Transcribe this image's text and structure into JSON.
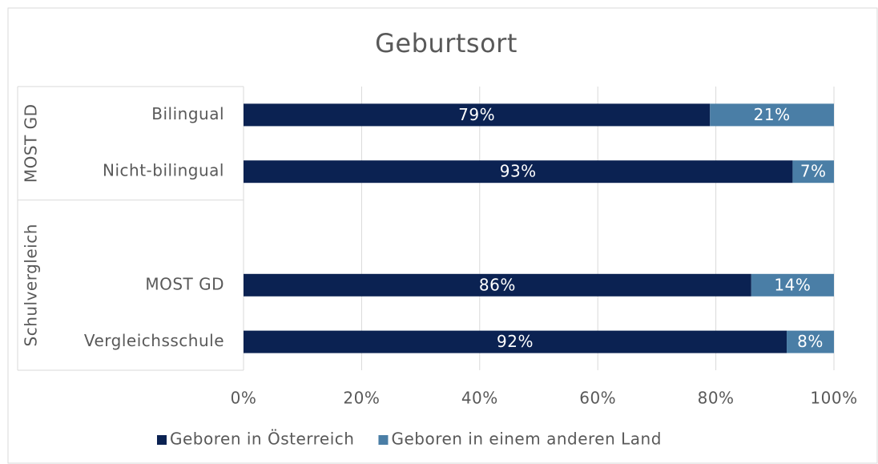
{
  "chart_data": {
    "type": "stacked_bar_horizontal",
    "title": "Geburtsort",
    "groups": [
      {
        "name": "MOST GD",
        "span": 2
      },
      {
        "name": "Schulvergleich",
        "span": 3
      }
    ],
    "categories": [
      "Bilingual",
      "Nicht-bilingual",
      null,
      "MOST GD",
      "Vergleichsschule"
    ],
    "series": [
      {
        "name": "Geboren in Österreich",
        "color": "#0b2252",
        "values": [
          79,
          93,
          null,
          86,
          92
        ],
        "value_labels": [
          "79%",
          "93%",
          null,
          "86%",
          "92%"
        ]
      },
      {
        "name": "Geboren in einem anderen Land",
        "color": "#4a7ea6",
        "values": [
          21,
          7,
          null,
          14,
          8
        ],
        "value_labels": [
          "21%",
          "7%",
          null,
          "14%",
          "8%"
        ]
      }
    ],
    "xlim": [
      0,
      100
    ],
    "xticks": [
      {
        "value": 0,
        "label": "0%"
      },
      {
        "value": 20,
        "label": "20%"
      },
      {
        "value": 40,
        "label": "40%"
      },
      {
        "value": 60,
        "label": "60%"
      },
      {
        "value": 80,
        "label": "80%"
      },
      {
        "value": 100,
        "label": "100%"
      }
    ],
    "grid": true,
    "legend": "bottom"
  }
}
